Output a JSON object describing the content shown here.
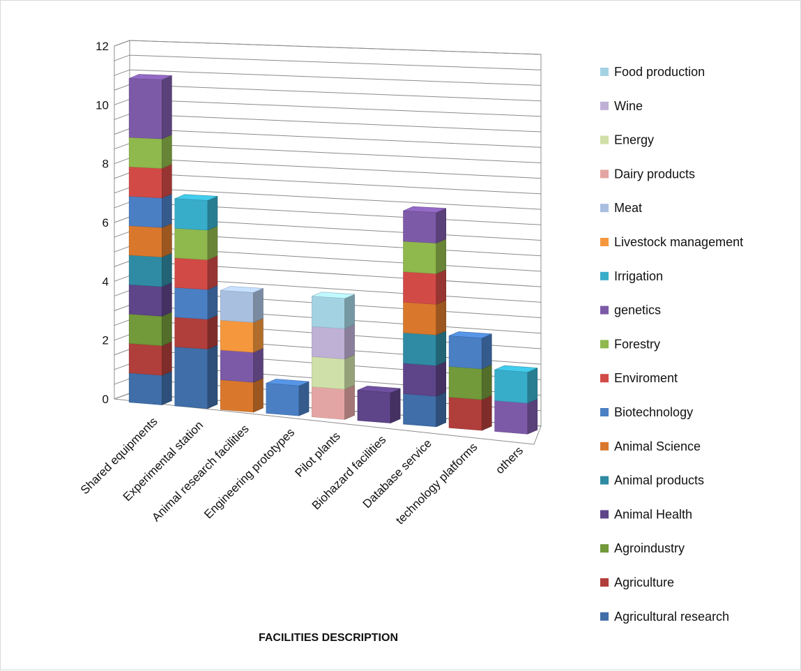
{
  "chart_data": {
    "type": "bar",
    "stacked": true,
    "three_d": true,
    "xlabel": "FACILITIES DESCRIPTION",
    "ylabel": "",
    "ylim": [
      0,
      12
    ],
    "yticks": [
      0,
      2,
      4,
      6,
      8,
      10,
      12
    ],
    "grid": true,
    "legend_position": "right",
    "categories": [
      "Shared equipments",
      "Experimental station",
      "Animal research facilities",
      "Engineering prototypes",
      "Pilot plants",
      "Biohazard facilities",
      "Database service",
      "technology platforms",
      "others"
    ],
    "series": [
      {
        "name": "Agricultural research",
        "color": "#3f6ea8",
        "values": [
          1,
          2,
          0,
          0,
          0,
          0,
          1,
          0,
          0
        ]
      },
      {
        "name": "Agriculture",
        "color": "#b03e3b",
        "values": [
          1,
          1,
          0,
          0,
          0,
          0,
          0,
          1,
          0
        ]
      },
      {
        "name": "Agroindustry",
        "color": "#72993a",
        "values": [
          1,
          0,
          0,
          0,
          0,
          0,
          0,
          1,
          0
        ]
      },
      {
        "name": "Animal Health",
        "color": "#5e4488",
        "values": [
          1,
          0,
          0,
          0,
          0,
          1,
          1,
          0,
          0
        ]
      },
      {
        "name": "Animal products",
        "color": "#2f8ba3",
        "values": [
          1,
          0,
          0,
          0,
          0,
          0,
          1,
          0,
          0
        ]
      },
      {
        "name": "Animal Science",
        "color": "#d9782c",
        "values": [
          1,
          0,
          1,
          0,
          0,
          0,
          1,
          0,
          0
        ]
      },
      {
        "name": "Biotechnology",
        "color": "#4a7fc4",
        "values": [
          1,
          1,
          0,
          1,
          0,
          0,
          0,
          1,
          0
        ]
      },
      {
        "name": "Enviroment",
        "color": "#d24a46",
        "values": [
          1,
          1,
          0,
          0,
          0,
          0,
          1,
          0,
          0
        ]
      },
      {
        "name": "Forestry",
        "color": "#8fb84d",
        "values": [
          1,
          1,
          0,
          0,
          0,
          0,
          1,
          0,
          0
        ]
      },
      {
        "name": "genetics",
        "color": "#7d5aa8",
        "values": [
          2,
          0,
          1,
          0,
          0,
          0,
          1,
          0,
          1
        ]
      },
      {
        "name": "Irrigation",
        "color": "#38adc9",
        "values": [
          0,
          1,
          0,
          0,
          0,
          0,
          0,
          0,
          1
        ]
      },
      {
        "name": "Livestock management",
        "color": "#f5973d",
        "values": [
          0,
          0,
          1,
          0,
          0,
          0,
          0,
          0,
          0
        ]
      },
      {
        "name": "Meat",
        "color": "#a9bfe0",
        "values": [
          0,
          0,
          1,
          0,
          0,
          0,
          0,
          0,
          0
        ]
      },
      {
        "name": "Dairy products",
        "color": "#e3a5a3",
        "values": [
          0,
          0,
          0,
          0,
          1,
          0,
          0,
          0,
          0
        ]
      },
      {
        "name": "Energy",
        "color": "#cfe0a8",
        "values": [
          0,
          0,
          0,
          0,
          1,
          0,
          0,
          0,
          0
        ]
      },
      {
        "name": "Wine",
        "color": "#bfb0d6",
        "values": [
          0,
          0,
          0,
          0,
          1,
          0,
          0,
          0,
          0
        ]
      },
      {
        "name": "Food production",
        "color": "#a3d3e3",
        "values": [
          0,
          0,
          0,
          0,
          1,
          0,
          0,
          0,
          0
        ]
      }
    ]
  }
}
